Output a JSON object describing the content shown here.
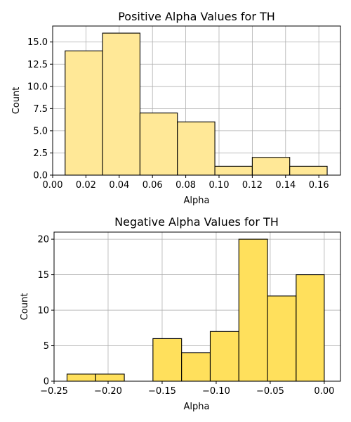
{
  "chart_data": [
    {
      "type": "bar",
      "title": "Positive Alpha Values for TH",
      "xlabel": "Alpha",
      "ylabel": "Count",
      "xlim": [
        0.0,
        0.173
      ],
      "ylim": [
        0,
        16.8
      ],
      "grid": true,
      "bar_color": "#FFE897",
      "edge_color": "#000000",
      "bin_edges": [
        0.0075,
        0.03,
        0.0525,
        0.075,
        0.0975,
        0.12,
        0.1425,
        0.165
      ],
      "values": [
        14,
        16,
        7,
        6,
        1,
        2,
        1
      ],
      "x_ticks": [
        0.0,
        0.02,
        0.04,
        0.06,
        0.08,
        0.1,
        0.12,
        0.14,
        0.16
      ],
      "x_tick_labels": [
        "0.00",
        "0.02",
        "0.04",
        "0.06",
        "0.08",
        "0.10",
        "0.12",
        "0.14",
        "0.16"
      ],
      "y_ticks": [
        0,
        2.5,
        5,
        7.5,
        10,
        12.5,
        15
      ],
      "y_tick_labels": [
        "0.0",
        "2.5",
        "5.0",
        "7.5",
        "10.0",
        "12.5",
        "15.0"
      ]
    },
    {
      "type": "bar",
      "title": "Negative Alpha Values for TH",
      "xlabel": "Alpha",
      "ylabel": "Count",
      "xlim": [
        -0.25,
        0.015
      ],
      "ylim": [
        0,
        21
      ],
      "grid": true,
      "bar_color": "#FFE05C",
      "edge_color": "#000000",
      "bin_edges": [
        -0.238,
        -0.2115,
        -0.185,
        -0.1585,
        -0.132,
        -0.1055,
        -0.079,
        -0.0525,
        -0.026,
        0.0
      ],
      "values": [
        1,
        1,
        0,
        6,
        4,
        7,
        20,
        12,
        15
      ],
      "x_ticks": [
        -0.25,
        -0.2,
        -0.15,
        -0.1,
        -0.05,
        0.0
      ],
      "x_tick_labels": [
        "−0.25",
        "−0.20",
        "−0.15",
        "−0.10",
        "−0.05",
        "0.00"
      ],
      "y_ticks": [
        0,
        5,
        10,
        15,
        20
      ],
      "y_tick_labels": [
        "0",
        "5",
        "10",
        "15",
        "20"
      ]
    }
  ]
}
